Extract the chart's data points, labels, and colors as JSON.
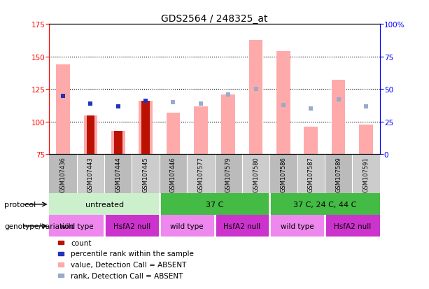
{
  "title": "GDS2564 / 248325_at",
  "samples": [
    "GSM107436",
    "GSM107443",
    "GSM107444",
    "GSM107445",
    "GSM107446",
    "GSM107577",
    "GSM107579",
    "GSM107580",
    "GSM107586",
    "GSM107587",
    "GSM107589",
    "GSM107591"
  ],
  "ylim_left": [
    75,
    175
  ],
  "ylim_right": [
    0,
    100
  ],
  "yticks_left": [
    75,
    100,
    125,
    150,
    175
  ],
  "yticks_right": [
    0,
    25,
    50,
    75,
    100
  ],
  "ytick_labels_right": [
    "0",
    "25",
    "50",
    "75",
    "100%"
  ],
  "pink_bars": [
    144,
    105,
    93,
    116,
    107,
    112,
    121,
    163,
    154,
    96,
    132,
    98
  ],
  "dark_red_bars": [
    null,
    105,
    93,
    116,
    null,
    null,
    null,
    null,
    null,
    null,
    null,
    null
  ],
  "blue_square_y": [
    120,
    114,
    112,
    116,
    null,
    null,
    null,
    null,
    null,
    null,
    null,
    null
  ],
  "light_blue_square_y": [
    null,
    null,
    null,
    null,
    115,
    114,
    121,
    125,
    113,
    110,
    117,
    112
  ],
  "protocol_groups": [
    {
      "label": "untreated",
      "start": 0,
      "end": 3,
      "color": "#ccf0cc"
    },
    {
      "label": "37 C",
      "start": 4,
      "end": 7,
      "color": "#44bb44"
    },
    {
      "label": "37 C, 24 C, 44 C",
      "start": 8,
      "end": 11,
      "color": "#44bb44"
    }
  ],
  "genotype_groups": [
    {
      "label": "wild type",
      "start": 0,
      "end": 1,
      "color": "#ee88ee"
    },
    {
      "label": "HsfA2 null",
      "start": 2,
      "end": 3,
      "color": "#cc33cc"
    },
    {
      "label": "wild type",
      "start": 4,
      "end": 5,
      "color": "#ee88ee"
    },
    {
      "label": "HsfA2 null",
      "start": 6,
      "end": 7,
      "color": "#cc33cc"
    },
    {
      "label": "wild type",
      "start": 8,
      "end": 9,
      "color": "#ee88ee"
    },
    {
      "label": "HsfA2 null",
      "start": 10,
      "end": 11,
      "color": "#cc33cc"
    }
  ],
  "color_pink_bar": "#ffaaaa",
  "color_dark_red": "#bb1100",
  "color_blue_square": "#2233bb",
  "color_light_blue_square": "#99aacc",
  "grid_yticks": [
    100,
    125,
    150
  ],
  "background_color": "#ffffff",
  "col_bg_even": "#bbbbbb",
  "col_bg_odd": "#cccccc",
  "col_divider": "#ffffff",
  "legend_items": [
    {
      "color": "#bb1100",
      "label": "count"
    },
    {
      "color": "#2233bb",
      "label": "percentile rank within the sample"
    },
    {
      "color": "#ffaaaa",
      "label": "value, Detection Call = ABSENT"
    },
    {
      "color": "#99aacc",
      "label": "rank, Detection Call = ABSENT"
    }
  ]
}
